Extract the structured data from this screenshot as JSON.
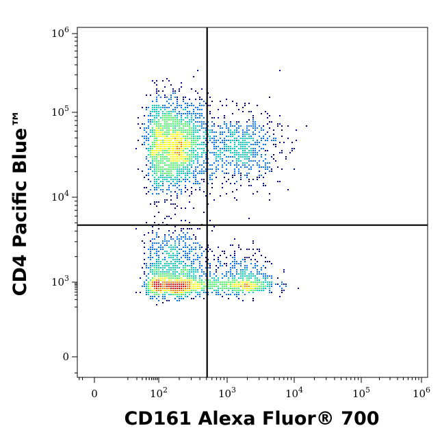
{
  "chart_data": {
    "type": "scatter",
    "title": "",
    "xlabel": "CD161 Alexa Fluor® 700",
    "ylabel": "CD4 Pacific Blue™",
    "x_scale": "biexponential (logicle)",
    "y_scale": "biexponential (logicle)",
    "xlim": [
      -30,
      1000000
    ],
    "ylim": [
      -20,
      1000000
    ],
    "x_ticks": [
      {
        "value": 0,
        "label": "0",
        "sup": ""
      },
      {
        "value": 100,
        "label": "10",
        "sup": "2"
      },
      {
        "value": 1000,
        "label": "10",
        "sup": "3"
      },
      {
        "value": 10000,
        "label": "10",
        "sup": "4"
      },
      {
        "value": 100000,
        "label": "10",
        "sup": "5"
      },
      {
        "value": 1000000,
        "label": "10",
        "sup": "6"
      }
    ],
    "y_ticks": [
      {
        "value": 0,
        "label": "0",
        "sup": ""
      },
      {
        "value": 1000,
        "label": "10",
        "sup": "3"
      },
      {
        "value": 10000,
        "label": "10",
        "sup": "4"
      },
      {
        "value": 100000,
        "label": "10",
        "sup": "5"
      },
      {
        "value": 1000000,
        "label": "10",
        "sup": "6"
      }
    ],
    "quadrant_gates": {
      "x": 510,
      "y": 4700
    },
    "density_colormap": [
      "#000090",
      "#0070ff",
      "#00d0c0",
      "#40ff60",
      "#ffff00",
      "#ff8000",
      "#ff0000"
    ],
    "populations": [
      {
        "x_center": 170,
        "y_center": 40000,
        "x_spread_decades": 0.28,
        "y_spread_decades": 0.28,
        "events": 1900
      },
      {
        "x_center": 1600,
        "y_center": 38000,
        "x_spread_decades": 0.3,
        "y_spread_decades": 0.22,
        "events": 650
      },
      {
        "x_center": 170,
        "y_center": 1000,
        "x_spread_decades": 0.28,
        "y_spread_decades": 0.3,
        "events": 1350
      },
      {
        "x_center": 1700,
        "y_center": 900,
        "x_spread_decades": 0.25,
        "y_spread_decades": 0.22,
        "events": 600
      }
    ],
    "grid": false,
    "legend": "none"
  }
}
